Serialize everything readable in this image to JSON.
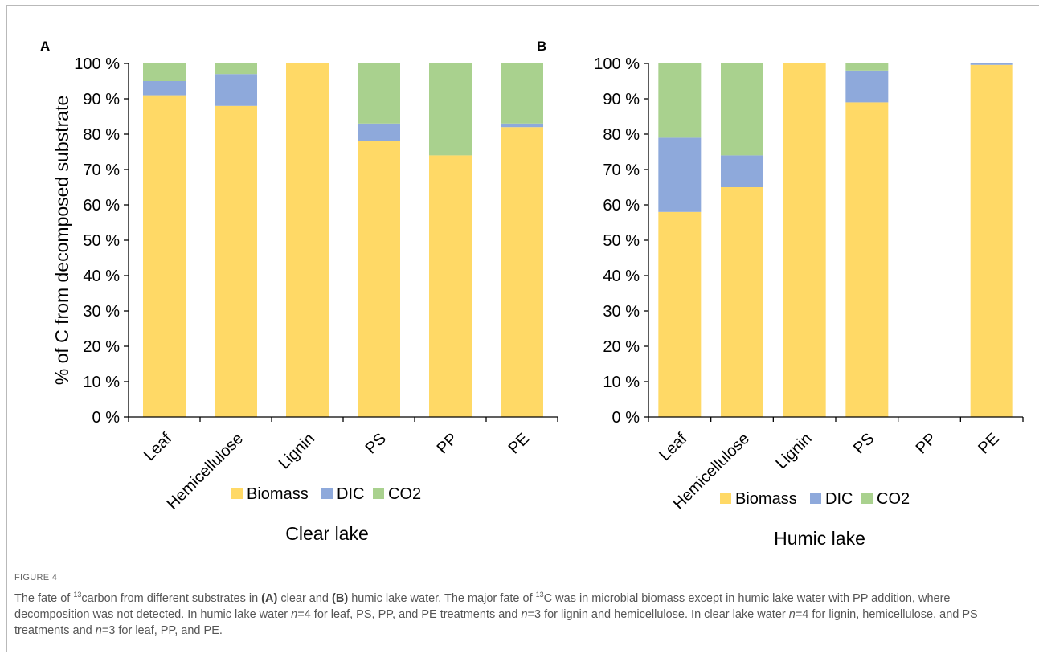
{
  "colors": {
    "biomass": "#FFD966",
    "dic": "#8EA9DB",
    "co2": "#A9D18E",
    "axis": "#000000"
  },
  "caption": {
    "label": "FIGURE 4",
    "p1": "The fate of ",
    "sup13a": "13",
    "p2": "carbon from different substrates in ",
    "ref_a": "(A)",
    "p3": " clear and ",
    "ref_b": "(B)",
    "p4": " humic lake water. The major fate of ",
    "sup13b": "13",
    "p5": "C was in microbial biomass except in humic lake water with PP addition, where decomposition was not detected. In humic lake water ",
    "n1": "n",
    "p6": "=4 for leaf, PS, PP, and PE treatments and ",
    "n2": "n",
    "p7": "=3 for lignin and hemicellulose. In clear lake water ",
    "n3": "n",
    "p8": "=4 for lignin, hemicellulose, and PS treatments and ",
    "n4": "n",
    "p9": "=3 for leaf, PP, and PE."
  },
  "chart_data": [
    {
      "panel": "A",
      "type": "bar",
      "stacked": true,
      "title": "",
      "xlabel": "Clear lake",
      "ylabel": "% of C from decomposed substrate",
      "ylim": [
        0,
        100
      ],
      "yticks": [
        "0 %",
        "10 %",
        "20 %",
        "30 %",
        "40 %",
        "50 %",
        "60 %",
        "70 %",
        "80 %",
        "90 %",
        "100 %"
      ],
      "categories": [
        "Leaf",
        "Hemicellulose",
        "Lignin",
        "PS",
        "PP",
        "PE"
      ],
      "series": [
        {
          "name": "Biomass",
          "values": [
            91,
            88,
            100,
            78,
            74,
            82
          ]
        },
        {
          "name": "DIC",
          "values": [
            4,
            9,
            0,
            5,
            0,
            1
          ]
        },
        {
          "name": "CO2",
          "values": [
            5,
            3,
            0,
            17,
            26,
            17
          ]
        }
      ],
      "legend": "bottom"
    },
    {
      "panel": "B",
      "type": "bar",
      "stacked": true,
      "title": "",
      "xlabel": "Humic lake",
      "ylabel": "",
      "ylim": [
        0,
        100
      ],
      "yticks": [
        "0 %",
        "10 %",
        "20 %",
        "30 %",
        "40 %",
        "50 %",
        "60 %",
        "70 %",
        "80 %",
        "90 %",
        "100 %"
      ],
      "categories": [
        "Leaf",
        "Hemicellulose",
        "Lignin",
        "PS",
        "PP",
        "PE"
      ],
      "series": [
        {
          "name": "Biomass",
          "values": [
            58,
            65,
            100,
            89,
            0,
            99.6
          ]
        },
        {
          "name": "DIC",
          "values": [
            21,
            9,
            0,
            9,
            0,
            0.4
          ]
        },
        {
          "name": "CO2",
          "values": [
            21,
            26,
            0,
            2,
            0,
            0
          ]
        }
      ],
      "legend": "bottom"
    }
  ]
}
